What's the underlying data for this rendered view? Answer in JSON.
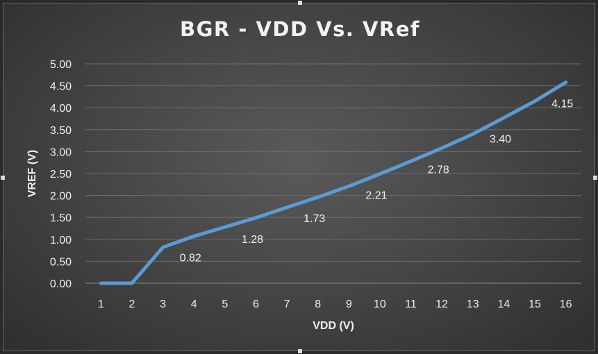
{
  "chart_data": {
    "type": "line",
    "title": "BGR - VDD Vs. VRef",
    "xlabel": "VDD (V)",
    "ylabel": "VREF (V)",
    "x": [
      1,
      2,
      3,
      4,
      5,
      6,
      7,
      8,
      9,
      10,
      11,
      12,
      13,
      14,
      15,
      16
    ],
    "ylim": [
      0,
      5
    ],
    "y_ticks": [
      "0.00",
      "0.50",
      "1.00",
      "1.50",
      "2.00",
      "2.50",
      "3.00",
      "3.50",
      "4.00",
      "4.50",
      "5.00"
    ],
    "series": [
      {
        "values": [
          0.0,
          0.0,
          0.82,
          1.07,
          1.28,
          1.49,
          1.73,
          1.96,
          2.21,
          2.49,
          2.78,
          3.08,
          3.4,
          3.77,
          4.15,
          4.58
        ],
        "color": "#5b9bd5"
      }
    ],
    "data_labels": [
      {
        "x": 4,
        "text": "0.82"
      },
      {
        "x": 6,
        "text": "1.28"
      },
      {
        "x": 8,
        "text": "1.73"
      },
      {
        "x": 10,
        "text": "2.21"
      },
      {
        "x": 12,
        "text": "2.78"
      },
      {
        "x": 14,
        "text": "3.40"
      },
      {
        "x": 16,
        "text": "4.15"
      }
    ],
    "grid": true,
    "legend": "none"
  }
}
